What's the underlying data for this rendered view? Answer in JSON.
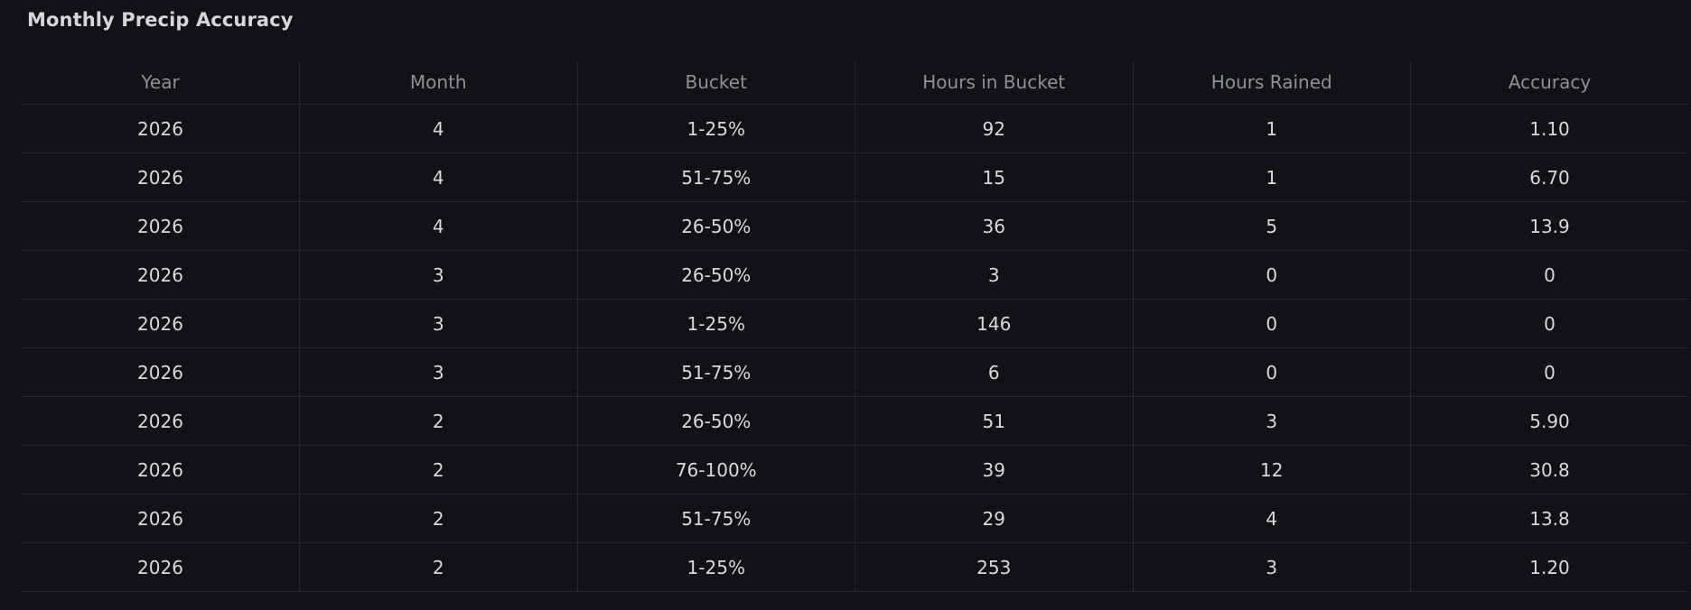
{
  "panel": {
    "title": "Monthly Precip Accuracy"
  },
  "table": {
    "columns": [
      "Year",
      "Month",
      "Bucket",
      "Hours in Bucket",
      "Hours Rained",
      "Accuracy"
    ],
    "rows": [
      [
        "2026",
        "4",
        "1-25%",
        "92",
        "1",
        "1.10"
      ],
      [
        "2026",
        "4",
        "51-75%",
        "15",
        "1",
        "6.70"
      ],
      [
        "2026",
        "4",
        "26-50%",
        "36",
        "5",
        "13.9"
      ],
      [
        "2026",
        "3",
        "26-50%",
        "3",
        "0",
        "0"
      ],
      [
        "2026",
        "3",
        "1-25%",
        "146",
        "0",
        "0"
      ],
      [
        "2026",
        "3",
        "51-75%",
        "6",
        "0",
        "0"
      ],
      [
        "2026",
        "2",
        "26-50%",
        "51",
        "3",
        "5.90"
      ],
      [
        "2026",
        "2",
        "76-100%",
        "39",
        "12",
        "30.8"
      ],
      [
        "2026",
        "2",
        "51-75%",
        "29",
        "4",
        "13.8"
      ],
      [
        "2026",
        "2",
        "1-25%",
        "253",
        "3",
        "1.20"
      ]
    ]
  },
  "colors": {
    "background": "#111217",
    "header_text": "#8e9099",
    "cell_text": "#d8d9de",
    "grid_line": "#24262c"
  }
}
